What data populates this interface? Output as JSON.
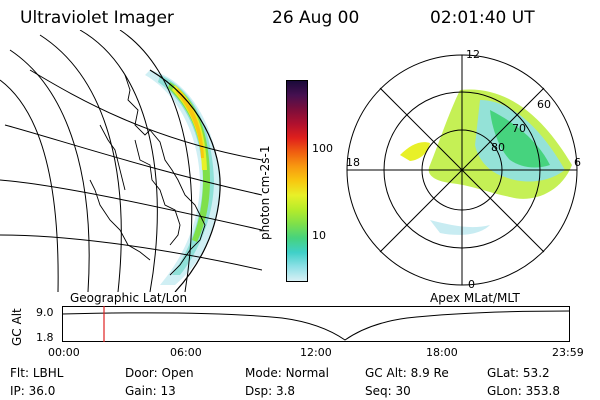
{
  "header": {
    "instrument": "Ultraviolet Imager",
    "date": "26 Aug 00",
    "time": "02:01:40 UT"
  },
  "colorbar": {
    "unit_label": "photon cm-2s-1",
    "tick_labels": [
      "100",
      "10"
    ],
    "colors_bottom_to_top": [
      "#d8f0f4",
      "#8ee0e6",
      "#3fd0c8",
      "#46d37e",
      "#7fe04a",
      "#b6ec2a",
      "#e8f028",
      "#f8c810",
      "#f89a10",
      "#f06010",
      "#e0201c",
      "#b0102e",
      "#7c0e3a",
      "#461050",
      "#1a0a3a"
    ]
  },
  "left_map": {
    "caption": "Geographic Lat/Lon"
  },
  "right_map": {
    "caption": "Apex MLat/MLT",
    "mlt_labels": {
      "top": "12",
      "left": "18",
      "right": "6",
      "bottom": "0"
    },
    "lat_labels": [
      "60",
      "70",
      "80"
    ]
  },
  "orbit": {
    "axis_label": "GC Alt",
    "y_ticks": [
      "9.0",
      "1.8"
    ],
    "x_ticks": [
      "00:00",
      "06:00",
      "12:00",
      "18:00",
      "23:59"
    ],
    "current_time_color": "#e02020"
  },
  "info": {
    "row1": [
      {
        "label": "Flt:",
        "value": "LBHL"
      },
      {
        "label": "Door:",
        "value": "Open"
      },
      {
        "label": "Mode:",
        "value": "Normal"
      },
      {
        "label": "GC Alt:",
        "value": "8.9 Re"
      },
      {
        "label": "GLat:",
        "value": "53.2"
      }
    ],
    "row2": [
      {
        "label": "IP:",
        "value": "36.0"
      },
      {
        "label": "Gain:",
        "value": "13"
      },
      {
        "label": "Dsp:",
        "value": "3.8"
      },
      {
        "label": "Seq:",
        "value": "30"
      },
      {
        "label": "GLon:",
        "value": "353.8"
      }
    ]
  }
}
